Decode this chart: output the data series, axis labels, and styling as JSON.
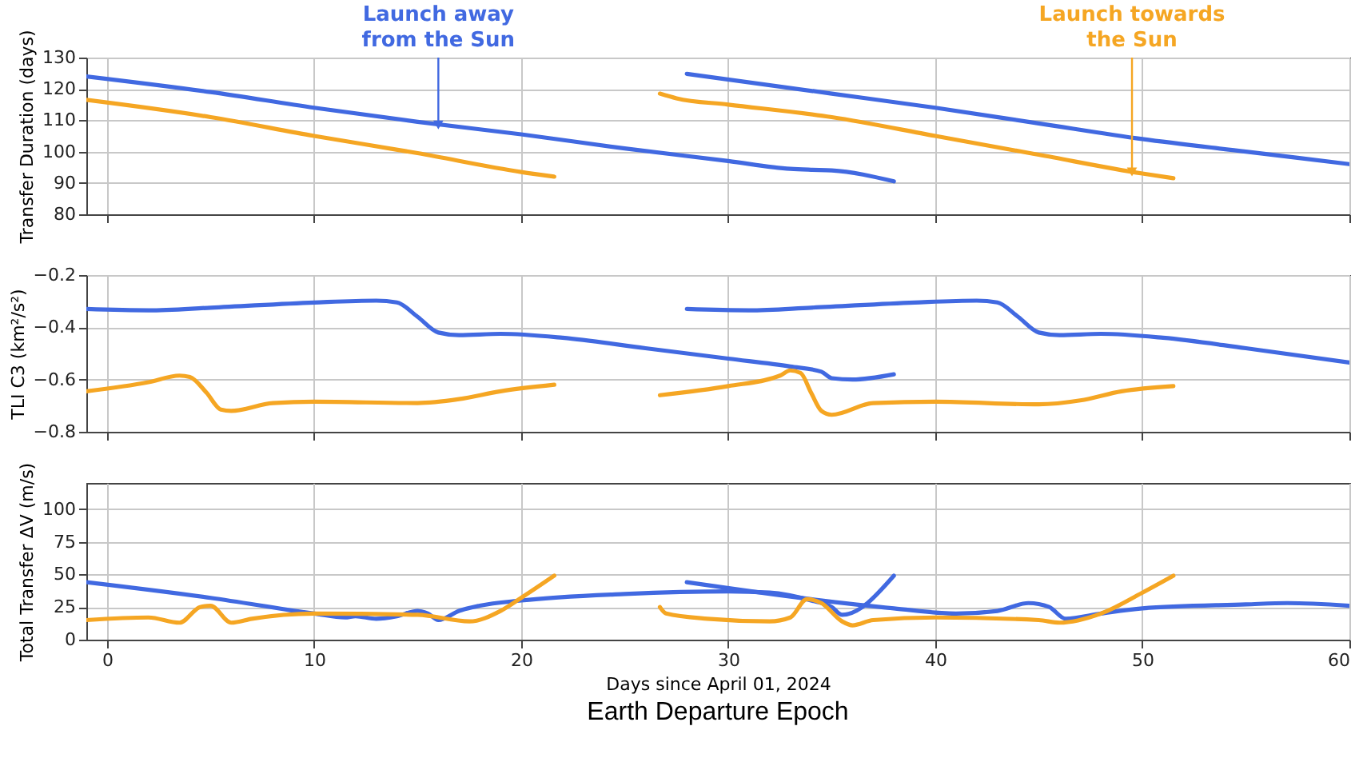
{
  "chart_data": [
    {
      "type": "line",
      "ylabel": "Transfer Duration (days)",
      "xlim": [
        -1,
        60
      ],
      "xticks": [
        0,
        10,
        20,
        30,
        40,
        50,
        60
      ],
      "ylim": [
        80,
        130
      ],
      "yticks": [
        80,
        90,
        100,
        110,
        120,
        130
      ],
      "grid": true,
      "tick_labels": "y",
      "annotations": [
        {
          "text": "Launch away from the Sun",
          "x": 16,
          "y": 108.5
        },
        {
          "text": "Launch towards the Sun",
          "x": 49.5,
          "y": 93.5
        }
      ],
      "series": [
        {
          "color": "#4169e1",
          "x": [
            -1,
            5,
            10,
            15,
            20,
            25,
            30,
            33,
            34,
            35,
            38
          ],
          "values": [
            124,
            119,
            114,
            109.5,
            105.5,
            101,
            97,
            94.5,
            94.2,
            94,
            90.5
          ]
        },
        {
          "color": "#4169e1",
          "x": [
            28,
            35,
            40,
            45,
            50,
            55,
            60
          ],
          "values": [
            124.8,
            118.5,
            114,
            109,
            104,
            100,
            96
          ]
        },
        {
          "color": "#f5a623",
          "x": [
            -1,
            5,
            10,
            15,
            20,
            21.6
          ],
          "values": [
            116.5,
            111,
            105,
            99.5,
            93.5,
            92
          ]
        },
        {
          "color": "#f5a623",
          "x": [
            26.7,
            27.5,
            30,
            35,
            40,
            45,
            50,
            51.5
          ],
          "values": [
            118.5,
            117,
            115,
            111,
            105,
            99,
            93,
            91.5
          ]
        }
      ]
    },
    {
      "type": "line",
      "ylabel": "TLI C3 (km²/s²)",
      "xlim": [
        -1,
        60
      ],
      "xticks": [
        0,
        10,
        20,
        30,
        40,
        50,
        60
      ],
      "ylim": [
        -0.8,
        -0.2
      ],
      "yticks": [
        -0.8,
        -0.6,
        -0.4,
        -0.2
      ],
      "grid": true,
      "tick_labels": "y",
      "series": [
        {
          "color": "#4169e1",
          "x": [
            -1,
            2,
            5,
            10,
            13,
            14,
            15,
            16,
            17,
            19,
            22,
            26,
            30,
            33,
            34.5,
            35,
            36,
            38
          ],
          "values": [
            -0.33,
            -0.335,
            -0.325,
            -0.305,
            -0.298,
            -0.305,
            -0.36,
            -0.42,
            -0.43,
            -0.425,
            -0.44,
            -0.48,
            -0.52,
            -0.55,
            -0.57,
            -0.595,
            -0.6,
            -0.58
          ]
        },
        {
          "color": "#4169e1",
          "x": [
            28,
            31,
            34,
            39,
            42,
            43,
            44,
            45,
            46,
            48,
            51,
            55,
            60
          ],
          "values": [
            -0.33,
            -0.335,
            -0.325,
            -0.305,
            -0.298,
            -0.305,
            -0.36,
            -0.42,
            -0.43,
            -0.425,
            -0.44,
            -0.48,
            -0.535
          ]
        },
        {
          "color": "#f5a623",
          "x": [
            -1,
            2,
            3.5,
            4,
            4.8,
            5.5,
            6,
            8,
            10,
            15,
            17,
            19,
            21.6
          ],
          "values": [
            -0.645,
            -0.61,
            -0.585,
            -0.59,
            -0.65,
            -0.715,
            -0.72,
            -0.69,
            -0.685,
            -0.69,
            -0.675,
            -0.645,
            -0.62
          ]
        },
        {
          "color": "#f5a623",
          "x": [
            26.7,
            30,
            32.5,
            33,
            33.5,
            34,
            34.5,
            35,
            37,
            40,
            45,
            47,
            49,
            51.5
          ],
          "values": [
            -0.66,
            -0.625,
            -0.585,
            -0.565,
            -0.575,
            -0.65,
            -0.72,
            -0.735,
            -0.69,
            -0.685,
            -0.695,
            -0.68,
            -0.645,
            -0.625
          ]
        }
      ]
    },
    {
      "type": "line",
      "ylabel": "Total Transfer ΔV (m/s)",
      "xlabel": "Days since April 01, 2024",
      "xlim": [
        -1,
        60
      ],
      "xticks": [
        0,
        10,
        20,
        30,
        40,
        50,
        60
      ],
      "ylim": [
        0,
        120
      ],
      "yticks": [
        0,
        25,
        50,
        75,
        100
      ],
      "grid": true,
      "annotations": [
        "Earth Departure Epoch"
      ],
      "series": [
        {
          "color": "#4169e1",
          "x": [
            -1,
            5,
            10,
            11.5,
            12,
            13,
            14,
            15,
            15.5,
            16,
            17,
            18,
            20,
            25,
            30,
            32,
            34,
            35,
            35.5,
            38
          ],
          "values": [
            44,
            32,
            20,
            17,
            18,
            16,
            18,
            22,
            20,
            15,
            22,
            26,
            30,
            35,
            37,
            36,
            30,
            25,
            19,
            49
          ]
        },
        {
          "color": "#4169e1",
          "x": [
            28,
            34,
            38,
            41,
            43,
            44.5,
            45.5,
            46.3,
            48,
            50,
            55,
            57,
            60
          ],
          "values": [
            44,
            31,
            24,
            20,
            22,
            28,
            25,
            16,
            20,
            24,
            27,
            28,
            26
          ]
        },
        {
          "color": "#f5a623",
          "x": [
            -1,
            2,
            3.5,
            4.5,
            5,
            6,
            7,
            10,
            15,
            17.5,
            19,
            20,
            21.6
          ],
          "values": [
            15,
            17,
            13,
            25,
            26,
            13,
            16,
            20,
            19,
            14,
            22,
            32,
            49
          ]
        },
        {
          "color": "#f5a623",
          "x": [
            26.7,
            27,
            29,
            32,
            33,
            33.8,
            34.5,
            35.5,
            36,
            37,
            40,
            45,
            46,
            48,
            50,
            51.5
          ],
          "values": [
            25,
            20,
            16,
            14,
            17,
            31,
            28,
            14,
            11,
            15,
            17,
            15,
            13,
            20,
            36,
            49
          ]
        }
      ]
    }
  ]
}
